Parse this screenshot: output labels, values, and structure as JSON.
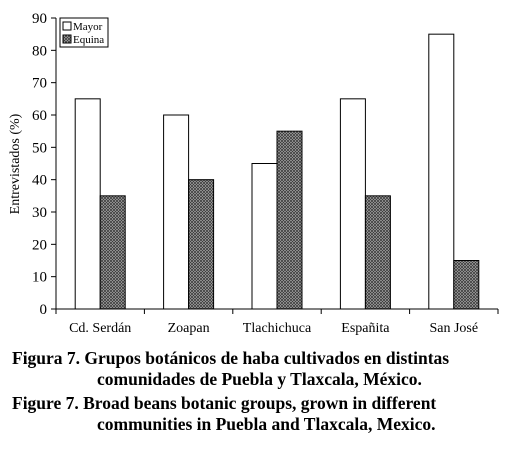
{
  "chart_data": {
    "type": "bar",
    "categories": [
      "Cd. Serdán",
      "Zoapan",
      "Tlachichuca",
      "Españita",
      "San José"
    ],
    "series": [
      {
        "name": "Mayor",
        "values": [
          65,
          60,
          45,
          65,
          85
        ],
        "fill": "#ffffff"
      },
      {
        "name": "Equina",
        "values": [
          35,
          40,
          55,
          35,
          15
        ],
        "fill": "pattern-crosshatch"
      }
    ],
    "ylabel": "Entrevistados (%)",
    "xlabel": "",
    "title": "",
    "ylim": [
      0,
      90
    ],
    "yticks": [
      0,
      10,
      20,
      30,
      40,
      50,
      60,
      70,
      80,
      90
    ],
    "grid": false,
    "legend": "top-left"
  },
  "captions": {
    "es_line1": "Figura 7. Grupos botánicos de haba cultivados en distintas",
    "es_line2": "comunidades de Puebla y Tlaxcala, México.",
    "en_line1": "Figure 7. Broad beans botanic groups, grown in different",
    "en_line2": "communities in Puebla and Tlaxcala, Mexico."
  }
}
